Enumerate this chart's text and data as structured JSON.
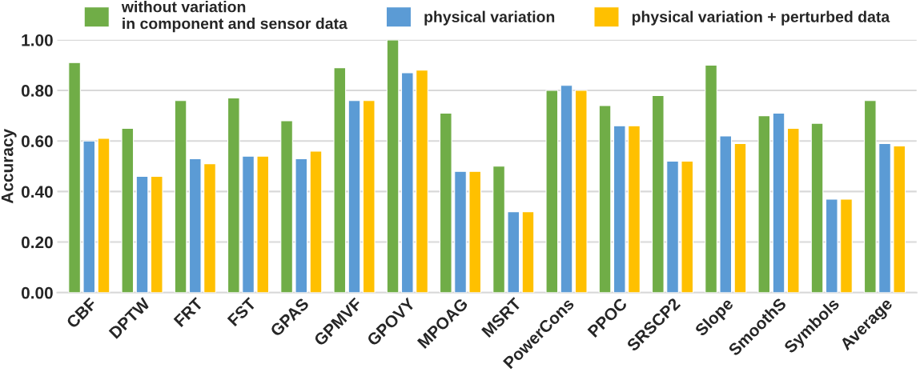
{
  "chart_data": {
    "type": "bar",
    "ylabel": "Accuracy",
    "categories": [
      "CBF",
      "DPTW",
      "FRT",
      "FST",
      "GPAS",
      "GPMVF",
      "GPOVY",
      "MPOAG",
      "MSRT",
      "PowerCons",
      "PPOC",
      "SRSCP2",
      "Slope",
      "SmoothS",
      "Symbols",
      "Average"
    ],
    "series": [
      {
        "name": "without variation\nin component and sensor data",
        "color": "#70ad47",
        "values": [
          0.91,
          0.65,
          0.76,
          0.77,
          0.68,
          0.89,
          1.0,
          0.71,
          0.5,
          0.8,
          0.74,
          0.78,
          0.9,
          0.7,
          0.67,
          0.76
        ]
      },
      {
        "name": "physical variation",
        "color": "#5b9bd5",
        "values": [
          0.6,
          0.46,
          0.53,
          0.54,
          0.53,
          0.76,
          0.87,
          0.48,
          0.32,
          0.82,
          0.66,
          0.52,
          0.62,
          0.71,
          0.37,
          0.59
        ]
      },
      {
        "name": "physical variation + perturbed data",
        "color": "#ffc000",
        "values": [
          0.61,
          0.46,
          0.51,
          0.54,
          0.56,
          0.76,
          0.88,
          0.48,
          0.32,
          0.8,
          0.66,
          0.52,
          0.59,
          0.65,
          0.37,
          0.58
        ]
      }
    ],
    "ylim": [
      0,
      1.0
    ],
    "yticks": [
      {
        "value": 0,
        "label": "0.00"
      },
      {
        "value": 0.2,
        "label": "0.20"
      },
      {
        "value": 0.4,
        "label": "0.40"
      },
      {
        "value": 0.6,
        "label": "0.60"
      },
      {
        "value": 0.8,
        "label": "0.80"
      },
      {
        "value": 1.0,
        "label": "1.00"
      }
    ],
    "grid": "y",
    "legend": "top"
  }
}
